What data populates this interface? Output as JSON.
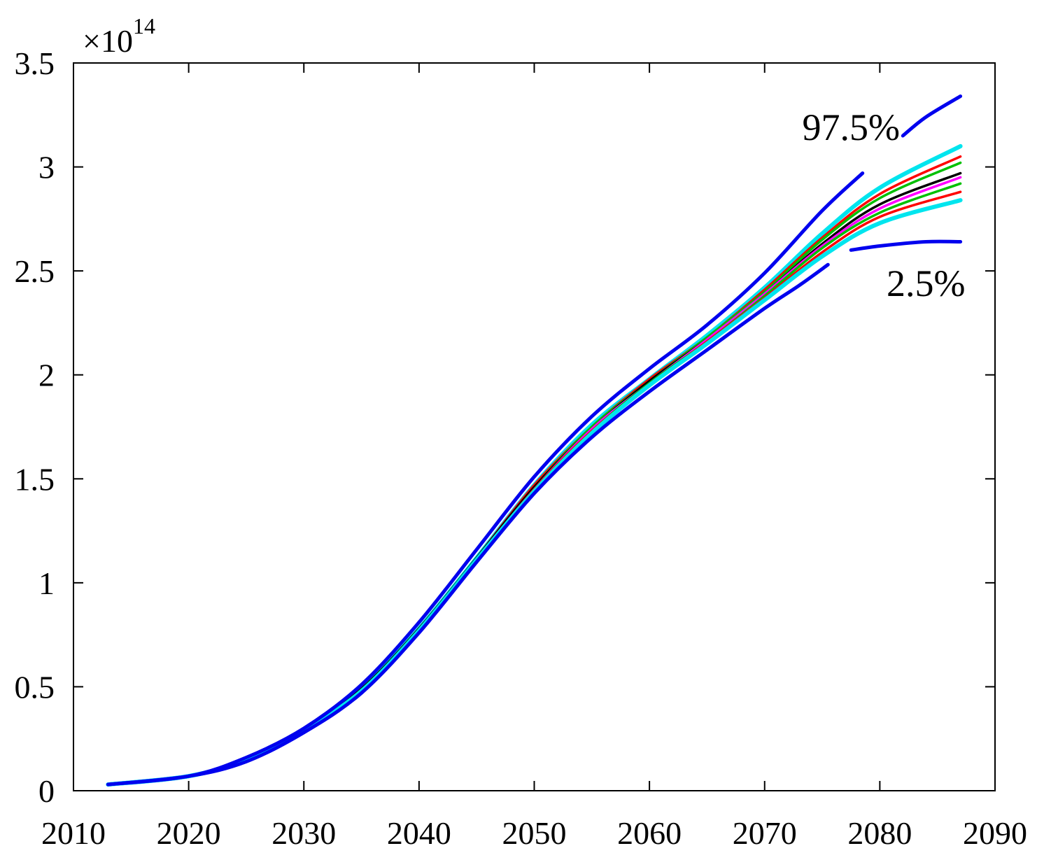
{
  "chart_data": {
    "type": "line",
    "title": "",
    "xlabel": "",
    "ylabel": "",
    "y_multiplier": {
      "base": "×10",
      "exponent": "14"
    },
    "xlim": [
      2010,
      2090
    ],
    "ylim": [
      0,
      3.5
    ],
    "xticks": [
      2010,
      2020,
      2030,
      2040,
      2050,
      2060,
      2070,
      2080,
      2090
    ],
    "yticks": [
      0,
      0.5,
      1,
      1.5,
      2,
      2.5,
      3,
      3.5
    ],
    "xtick_labels": [
      "2010",
      "2020",
      "2030",
      "2040",
      "2050",
      "2060",
      "2070",
      "2080",
      "2090"
    ],
    "ytick_labels": [
      "0",
      "0.5",
      "1",
      "1.5",
      "2",
      "2.5",
      "3",
      "3.5"
    ],
    "grid": false,
    "x": [
      2013,
      2020,
      2025,
      2030,
      2035,
      2040,
      2045,
      2050,
      2055,
      2060,
      2065,
      2070,
      2075,
      2080,
      2087
    ],
    "series": [
      {
        "name": "cyan-upper",
        "color": "#00e5ee",
        "values": [
          0.03,
          0.07,
          0.15,
          0.29,
          0.49,
          0.78,
          1.12,
          1.47,
          1.76,
          1.98,
          2.19,
          2.42,
          2.68,
          2.9,
          3.1
        ]
      },
      {
        "name": "red-upper",
        "color": "#ff0000",
        "values": [
          0.03,
          0.07,
          0.15,
          0.29,
          0.49,
          0.78,
          1.12,
          1.47,
          1.75,
          1.98,
          2.18,
          2.41,
          2.66,
          2.87,
          3.05
        ]
      },
      {
        "name": "green-upper",
        "color": "#00c000",
        "values": [
          0.03,
          0.07,
          0.15,
          0.29,
          0.49,
          0.78,
          1.12,
          1.46,
          1.75,
          1.97,
          2.18,
          2.4,
          2.65,
          2.85,
          3.02
        ]
      },
      {
        "name": "black-median",
        "color": "#000000",
        "values": [
          0.03,
          0.07,
          0.15,
          0.29,
          0.49,
          0.78,
          1.12,
          1.46,
          1.74,
          1.97,
          2.17,
          2.39,
          2.63,
          2.82,
          2.97
        ]
      },
      {
        "name": "magenta",
        "color": "#ff00ff",
        "values": [
          0.03,
          0.07,
          0.15,
          0.29,
          0.48,
          0.77,
          1.11,
          1.45,
          1.74,
          1.96,
          2.17,
          2.39,
          2.62,
          2.8,
          2.95
        ]
      },
      {
        "name": "green-lower",
        "color": "#00c000",
        "values": [
          0.03,
          0.07,
          0.15,
          0.29,
          0.48,
          0.77,
          1.11,
          1.45,
          1.73,
          1.96,
          2.16,
          2.38,
          2.61,
          2.78,
          2.92
        ]
      },
      {
        "name": "red-lower",
        "color": "#ff0000",
        "values": [
          0.03,
          0.07,
          0.15,
          0.29,
          0.48,
          0.77,
          1.11,
          1.45,
          1.73,
          1.95,
          2.16,
          2.37,
          2.59,
          2.76,
          2.88
        ]
      },
      {
        "name": "cyan-lower",
        "color": "#00e5ee",
        "values": [
          0.03,
          0.07,
          0.15,
          0.29,
          0.48,
          0.77,
          1.11,
          1.44,
          1.72,
          1.95,
          2.15,
          2.36,
          2.57,
          2.73,
          2.84
        ]
      }
    ],
    "bounds": [
      {
        "name": "97.5%",
        "color": "#0000ee",
        "x": [
          2013,
          2020,
          2025,
          2030,
          2035,
          2040,
          2045,
          2050,
          2055,
          2060,
          2065,
          2070,
          2075,
          2078.5
        ],
        "values": [
          0.03,
          0.07,
          0.16,
          0.3,
          0.51,
          0.81,
          1.16,
          1.51,
          1.8,
          2.03,
          2.24,
          2.49,
          2.79,
          2.97
        ]
      },
      {
        "name": "97.5%-tail",
        "color": "#0000ee",
        "x": [
          2082,
          2084,
          2087
        ],
        "values": [
          3.15,
          3.24,
          3.34
        ]
      },
      {
        "name": "2.5%",
        "color": "#0000ee",
        "x": [
          2013,
          2020,
          2025,
          2030,
          2035,
          2040,
          2045,
          2050,
          2055,
          2060,
          2065,
          2070,
          2073,
          2075.5
        ],
        "values": [
          0.03,
          0.07,
          0.14,
          0.28,
          0.47,
          0.76,
          1.1,
          1.43,
          1.7,
          1.92,
          2.12,
          2.32,
          2.43,
          2.53
        ]
      },
      {
        "name": "2.5%-tail",
        "color": "#0000ee",
        "x": [
          2077.5,
          2080,
          2084,
          2087
        ],
        "values": [
          2.6,
          2.62,
          2.64,
          2.64
        ]
      }
    ],
    "annotations": [
      {
        "text": "97.5%",
        "x": 2077.5,
        "y": 3.13
      },
      {
        "text": "2.5%",
        "x": 2084,
        "y": 2.38
      }
    ]
  }
}
